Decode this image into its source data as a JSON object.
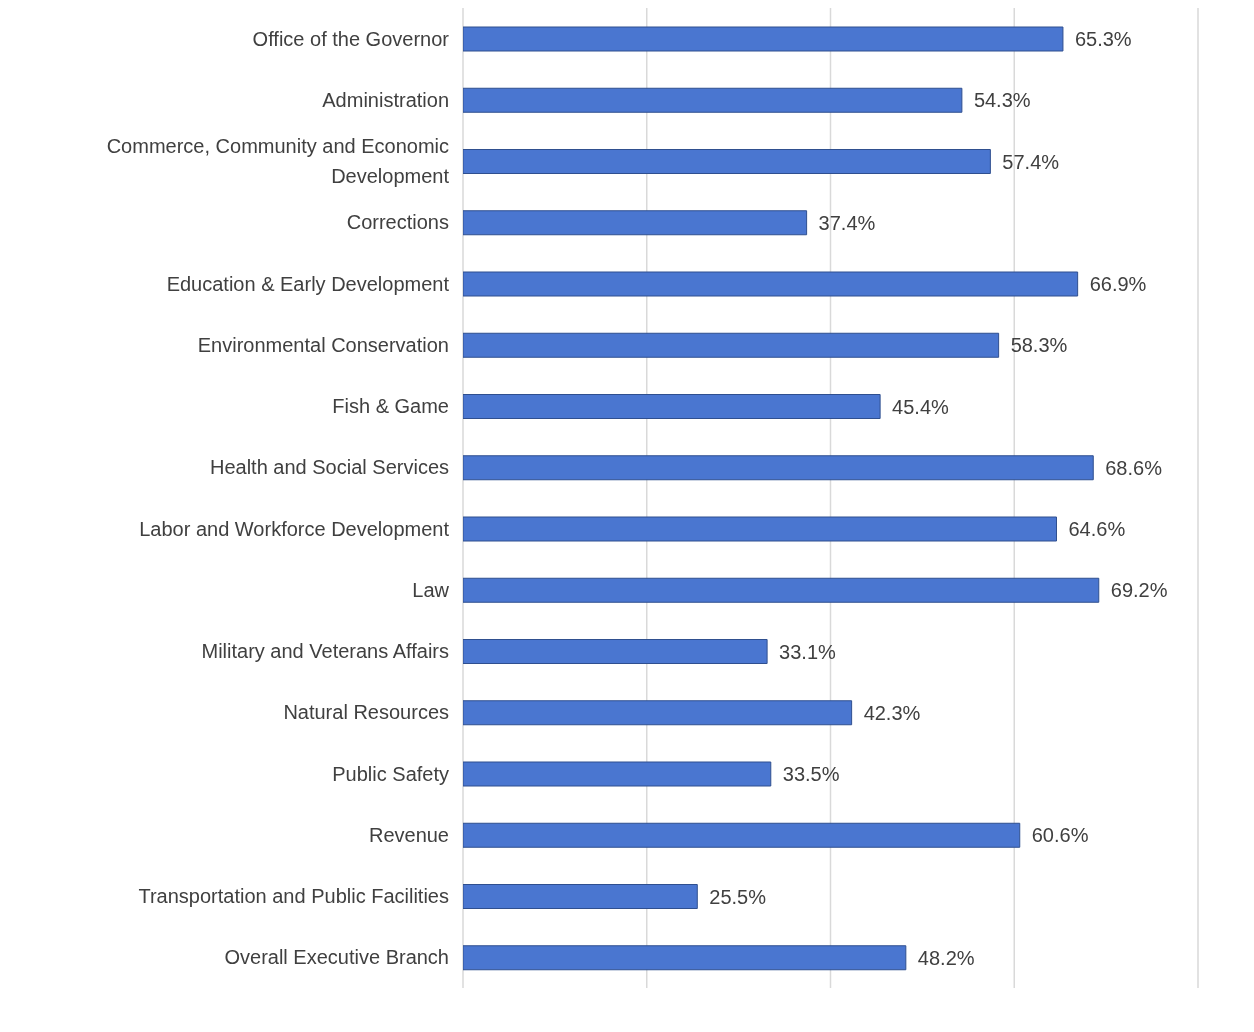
{
  "chart_data": {
    "type": "bar",
    "orientation": "horizontal",
    "categories": [
      "Office of the Governor",
      "Administration",
      "Commerce, Community and Economic Development",
      "Corrections",
      "Education & Early Development",
      "Environmental Conservation",
      "Fish & Game",
      "Health and Social Services",
      "Labor and Workforce Development",
      "Law",
      "Military and Veterans Affairs",
      "Natural Resources",
      "Public Safety",
      "Revenue",
      "Transportation and Public Facilities",
      "Overall Executive Branch"
    ],
    "values": [
      65.3,
      54.3,
      57.4,
      37.4,
      66.9,
      58.3,
      45.4,
      68.6,
      64.6,
      69.2,
      33.1,
      42.3,
      33.5,
      60.6,
      25.5,
      48.2
    ],
    "value_labels": [
      "65.3%",
      "54.3%",
      "57.4%",
      "37.4%",
      "66.9%",
      "58.3%",
      "45.4%",
      "68.6%",
      "64.6%",
      "69.2%",
      "33.1%",
      "42.3%",
      "33.5%",
      "60.6%",
      "25.5%",
      "48.2%"
    ],
    "color": "#4a76d0",
    "xlim": [
      0,
      80
    ],
    "grid": "x",
    "tick_labels": "y"
  }
}
